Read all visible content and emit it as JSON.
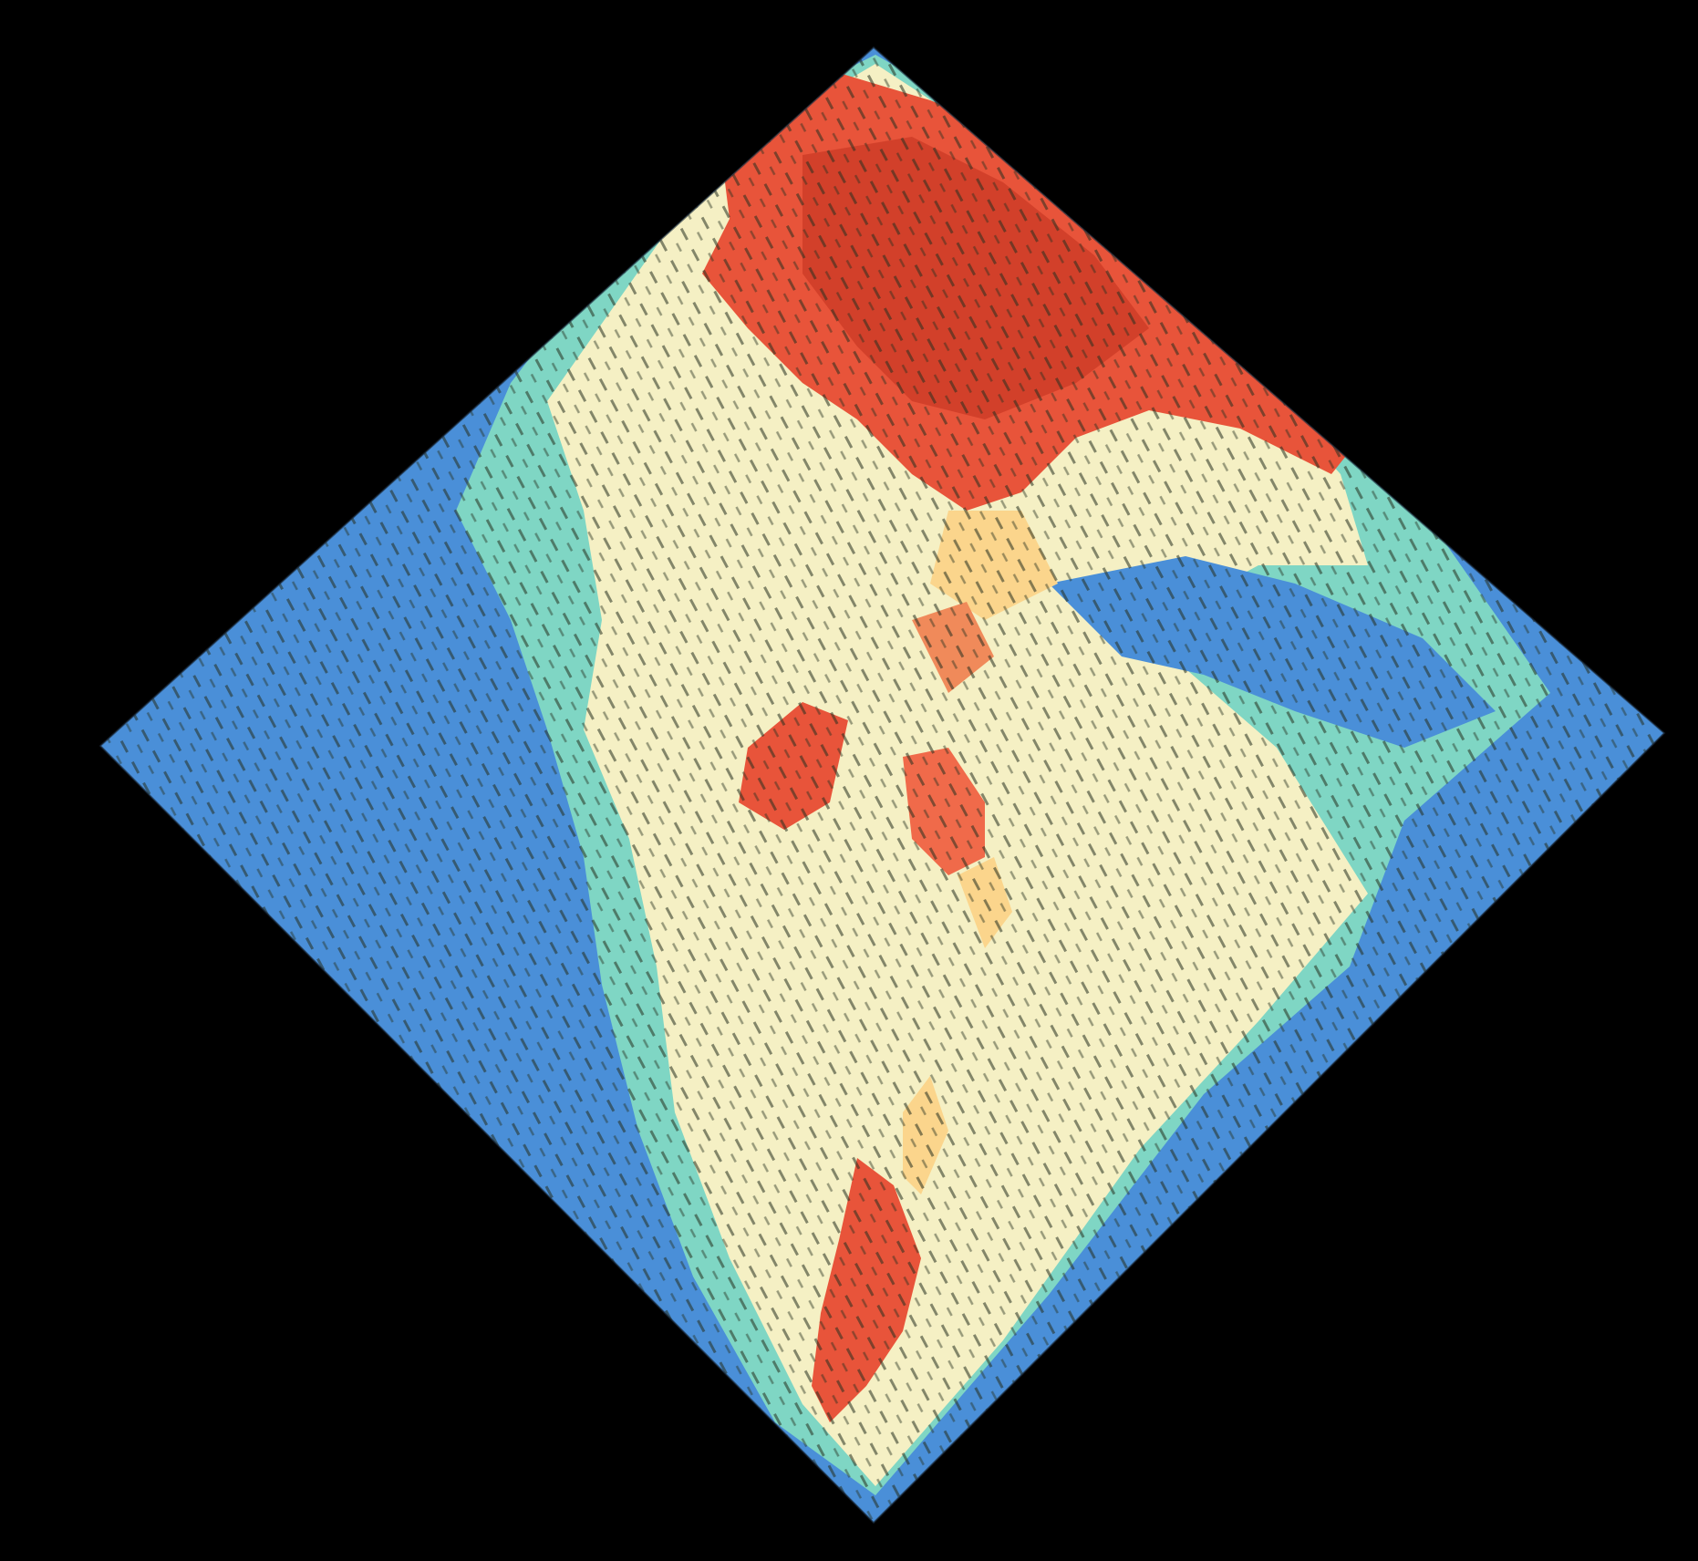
{
  "scene": {
    "background_color": "#000000",
    "palette": {
      "low": "#4a8fd8",
      "low_mid": "#7fd6c4",
      "mid": "#f5f0c4",
      "mid_high": "#fbd58c",
      "high": "#e8543a",
      "peak": "#d2402a",
      "shadow": "#3a3a28"
    }
  }
}
